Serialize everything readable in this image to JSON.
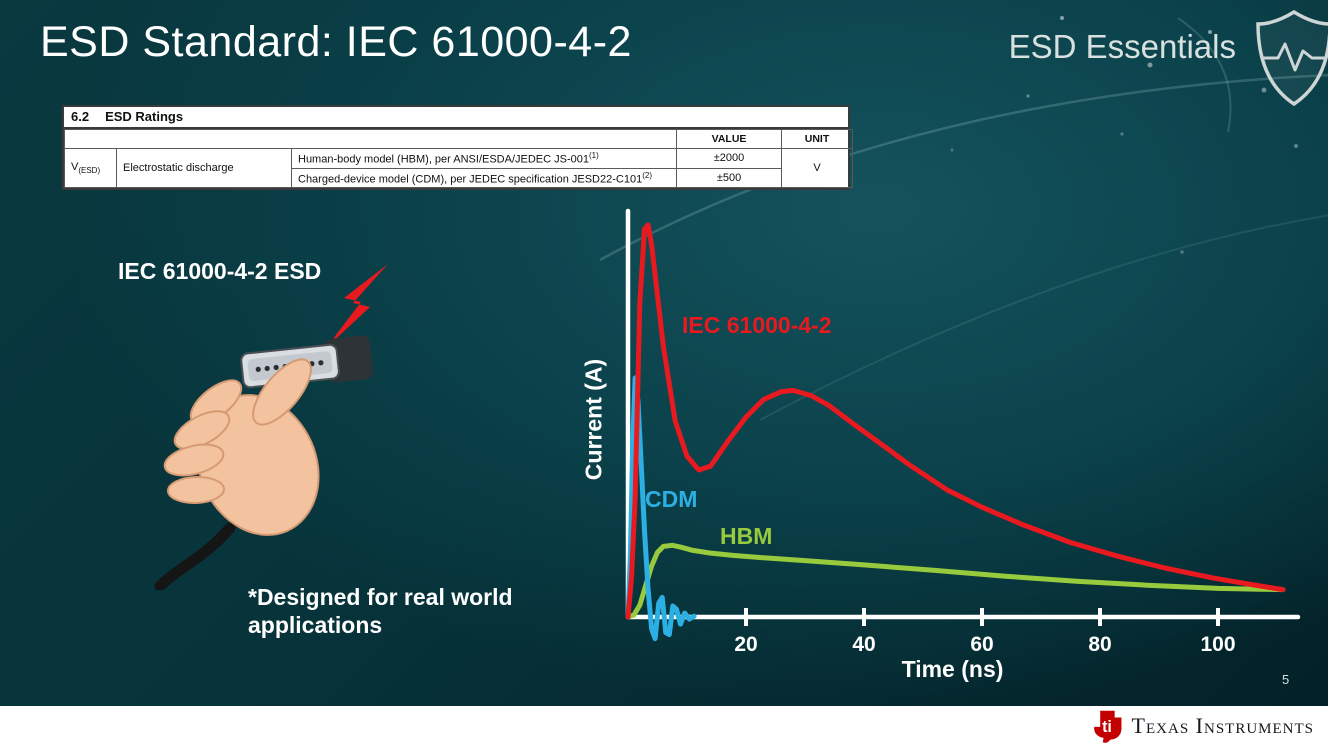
{
  "slide": {
    "title": "ESD Standard: IEC 61000-4-2",
    "series_label": "ESD Essentials",
    "page_number": "5"
  },
  "table": {
    "section_num": "6.2",
    "section_name": "ESD Ratings",
    "headers": {
      "value": "VALUE",
      "unit": "UNIT"
    },
    "param": {
      "symbol": "V",
      "symbol_sub": "(ESD)",
      "name": "Electrostatic discharge",
      "unit": "V"
    },
    "rows": [
      {
        "description": "Human-body model (HBM), per ANSI/ESDA/JEDEC JS-001",
        "description_sup": "(1)",
        "value": "±2000"
      },
      {
        "description": "Charged-device model (CDM), per JEDEC specification JESD22-C101",
        "description_sup": "(2)",
        "value": "±500"
      }
    ]
  },
  "left": {
    "caption": "IEC 61000-4-2 ESD",
    "note": "*Designed for real world applications"
  },
  "chart_data": {
    "type": "line",
    "title": "",
    "xlabel": "Time (ns)",
    "ylabel": "Current (A)",
    "xlim": [
      0,
      112
    ],
    "ylim": [
      -0.06,
      1.05
    ],
    "xticks": [
      20,
      40,
      60,
      80,
      100
    ],
    "grid": false,
    "y_scale_note": "no y tick labels shown; amplitudes normalized to IEC peak = 1.0",
    "series": [
      {
        "name": "IEC 61000-4-2",
        "color": "#e8191f",
        "x": [
          0,
          0.6,
          1.2,
          2,
          2.8,
          3.4,
          4,
          5,
          6,
          8,
          10,
          12,
          14,
          17,
          20,
          23,
          26,
          28,
          31,
          34,
          38,
          43,
          48,
          54,
          60,
          67,
          75,
          83,
          91,
          99,
          106,
          111
        ],
        "y": [
          0,
          0.1,
          0.3,
          0.8,
          0.99,
          1.0,
          0.95,
          0.82,
          0.69,
          0.5,
          0.41,
          0.375,
          0.385,
          0.45,
          0.51,
          0.555,
          0.575,
          0.578,
          0.565,
          0.54,
          0.495,
          0.44,
          0.385,
          0.325,
          0.28,
          0.235,
          0.19,
          0.155,
          0.125,
          0.1,
          0.082,
          0.07
        ]
      },
      {
        "name": "CDM",
        "color": "#2cb0e3",
        "x": [
          0,
          0.4,
          0.8,
          1.2,
          1.7,
          2.2,
          2.8,
          3.4,
          4.0,
          4.6,
          5.2,
          5.8,
          6.4,
          7.0,
          7.6,
          8.2,
          8.9,
          9.6,
          10.4,
          11.2
        ],
        "y": [
          0,
          0.16,
          0.44,
          0.61,
          0.55,
          0.4,
          0.22,
          0.07,
          -0.03,
          -0.055,
          0.035,
          0.05,
          -0.04,
          -0.045,
          0.028,
          0.02,
          -0.018,
          0.01,
          -0.005,
          0.002
        ]
      },
      {
        "name": "HBM",
        "color": "#97ca3d",
        "x": [
          0,
          1,
          2,
          3,
          4,
          5,
          6,
          7.5,
          9,
          11,
          14,
          18,
          23,
          30,
          40,
          52,
          64,
          76,
          88,
          100,
          107,
          111
        ],
        "y": [
          0,
          0.005,
          0.03,
          0.08,
          0.13,
          0.165,
          0.18,
          0.183,
          0.178,
          0.17,
          0.163,
          0.157,
          0.151,
          0.144,
          0.133,
          0.119,
          0.104,
          0.091,
          0.081,
          0.073,
          0.071,
          0.07
        ]
      }
    ]
  },
  "footer": {
    "brand": "Texas Instruments",
    "logo_text": "ti"
  },
  "colors": {
    "background": "#0a3d45",
    "slide_text": "#ffffff",
    "bolt_red": "#e8191f",
    "ti_red": "#c40000"
  }
}
